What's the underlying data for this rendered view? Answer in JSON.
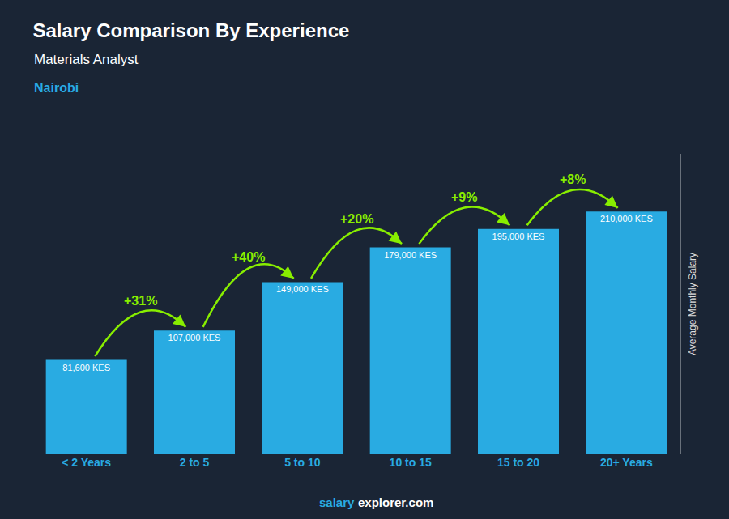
{
  "chart_data": {
    "type": "bar",
    "title": "Salary Comparison By Experience",
    "subtitle": "Materials Analyst",
    "ylabel": "Average Monthly Salary",
    "categories": [
      "< 2 Years",
      "2 to 5",
      "5 to 10",
      "10 to 15",
      "15 to 20",
      "20+ Years"
    ],
    "values": [
      81600,
      107000,
      149000,
      179000,
      195000,
      210000
    ],
    "value_labels": [
      "81,600 KES",
      "107,000 KES",
      "149,000 KES",
      "179,000 KES",
      "195,000 KES",
      "210,000 KES"
    ],
    "data_labels": true,
    "color": "#29ABE2",
    "ylim": [
      0,
      260000
    ],
    "tick_labels": "x",
    "grid": false,
    "annotations": [
      {
        "text": "Nairobi",
        "color": "#29ABE2"
      },
      {
        "text": "+31%",
        "x": "2 to 5",
        "color": "#88EE00"
      },
      {
        "text": "+40%",
        "x": "5 to 10",
        "color": "#88EE00"
      },
      {
        "text": "+20%",
        "x": "10 to 15",
        "color": "#88EE00"
      },
      {
        "text": "+9%",
        "x": "15 to 20",
        "color": "#88EE00"
      },
      {
        "text": "+8%",
        "x": "20+ Years",
        "color": "#88EE00"
      }
    ],
    "footer": [
      {
        "text": "salary",
        "color": "#29ABE2"
      },
      {
        "text": "explorer.com",
        "color": "#FFFFFF"
      }
    ]
  }
}
